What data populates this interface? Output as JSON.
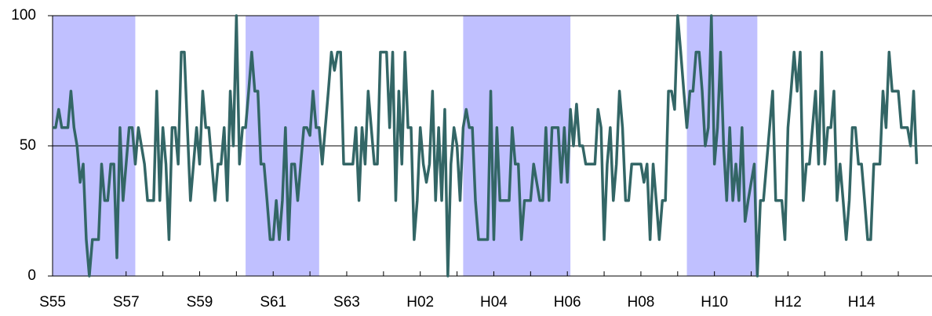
{
  "chart_data": {
    "type": "line",
    "color": "#336666",
    "shade_color": "#c0c0ff",
    "shaded_ranges": [
      [
        0,
        27
      ],
      [
        63,
        87
      ],
      [
        134,
        169
      ],
      [
        207,
        230
      ]
    ],
    "xlim": [
      0,
      287
    ],
    "xticks": [
      {
        "value": 0,
        "label": "S55"
      },
      {
        "value": 24,
        "label": "S57"
      },
      {
        "value": 48,
        "label": "S59"
      },
      {
        "value": 72,
        "label": "S61"
      },
      {
        "value": 96,
        "label": "S63"
      },
      {
        "value": 120,
        "label": "H02"
      },
      {
        "value": 144,
        "label": "H04"
      },
      {
        "value": 168,
        "label": "H06"
      },
      {
        "value": 192,
        "label": "H08"
      },
      {
        "value": 216,
        "label": "H10"
      },
      {
        "value": 240,
        "label": "H12"
      },
      {
        "value": 264,
        "label": "H14"
      }
    ],
    "xminor_ticks": [
      12,
      36,
      60,
      84,
      108,
      132,
      156,
      180,
      204,
      228,
      252,
      276
    ],
    "ylim": [
      0,
      100
    ],
    "yticks": [
      0,
      50,
      100
    ],
    "grid": true,
    "values": [
      57,
      57,
      64,
      57,
      57,
      57,
      71,
      57,
      50,
      36,
      43,
      14,
      0,
      14,
      14,
      14,
      43,
      29,
      29,
      43,
      43,
      7,
      57,
      29,
      43,
      57,
      57,
      43,
      57,
      50,
      43,
      29,
      29,
      29,
      71,
      29,
      57,
      43,
      14,
      57,
      57,
      43,
      86,
      86,
      57,
      29,
      43,
      57,
      43,
      71,
      57,
      57,
      43,
      29,
      43,
      43,
      57,
      29,
      71,
      50,
      100,
      43,
      57,
      57,
      71,
      86,
      71,
      71,
      43,
      43,
      29,
      14,
      14,
      29,
      14,
      29,
      57,
      14,
      43,
      43,
      29,
      43,
      57,
      57,
      54,
      71,
      57,
      57,
      43,
      57,
      71,
      86,
      79,
      86,
      86,
      43,
      43,
      43,
      43,
      57,
      29,
      57,
      43,
      71,
      57,
      43,
      43,
      86,
      86,
      86,
      57,
      86,
      29,
      71,
      43,
      86,
      57,
      57,
      14,
      29,
      57,
      43,
      36,
      43,
      71,
      29,
      57,
      29,
      64,
      0,
      43,
      57,
      50,
      29,
      57,
      64,
      57,
      57,
      29,
      14,
      14,
      14,
      14,
      71,
      14,
      57,
      29,
      29,
      29,
      29,
      57,
      43,
      43,
      14,
      29,
      29,
      29,
      43,
      36,
      29,
      29,
      57,
      29,
      57,
      57,
      57,
      36,
      57,
      36,
      64,
      50,
      66,
      50,
      50,
      43,
      43,
      43,
      43,
      64,
      57,
      14,
      43,
      57,
      29,
      43,
      71,
      57,
      29,
      29,
      43,
      43,
      43,
      43,
      36,
      43,
      14,
      43,
      29,
      14,
      29,
      29,
      71,
      71,
      64,
      100,
      86,
      71,
      57,
      71,
      71,
      86,
      86,
      71,
      50,
      57,
      100,
      43,
      57,
      86,
      50,
      29,
      57,
      29,
      43,
      29,
      57,
      21,
      29,
      36,
      43,
      0,
      29,
      29,
      43,
      57,
      71,
      29,
      29,
      29,
      14,
      57,
      71,
      86,
      71,
      86,
      29,
      43,
      43,
      57,
      71,
      43,
      86,
      43,
      57,
      57,
      71,
      29,
      43,
      29,
      14,
      29,
      57,
      57,
      43,
      43,
      29,
      14,
      14,
      43,
      43,
      43,
      71,
      57,
      86,
      71,
      71,
      71,
      57,
      57,
      57,
      50,
      71,
      43
    ]
  }
}
